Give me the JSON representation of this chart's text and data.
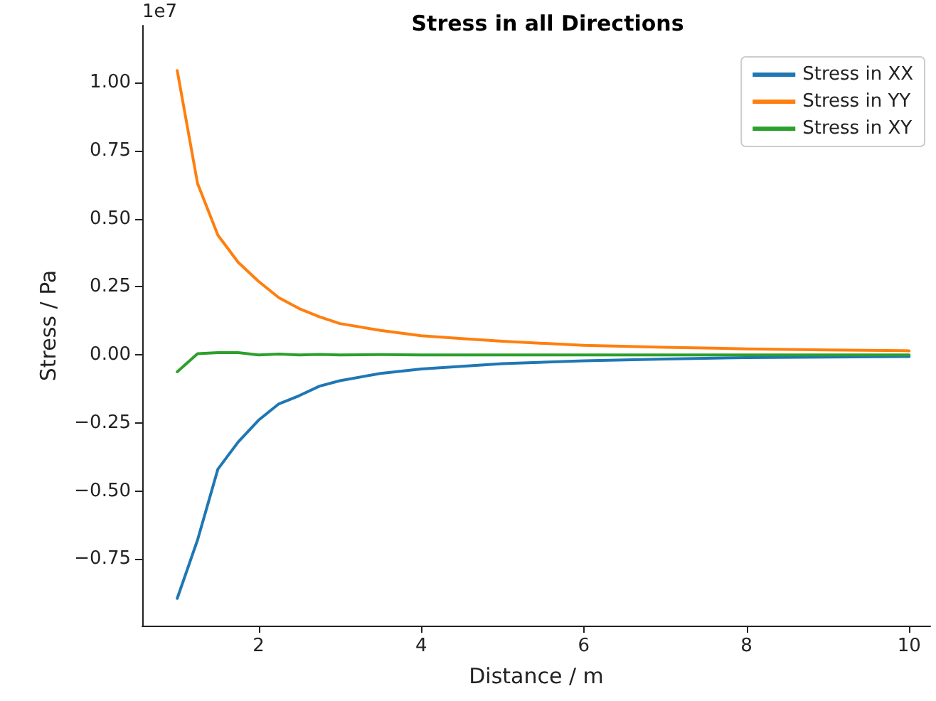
{
  "chart_data": {
    "type": "line",
    "title": "Stress in all Directions",
    "xlabel": "Distance / m",
    "ylabel": "Stress / Pa",
    "annotations": [
      "1e7"
    ],
    "x": [
      1,
      1.25,
      1.5,
      1.75,
      2,
      2.25,
      2.5,
      2.75,
      3,
      3.5,
      4,
      4.5,
      5,
      6,
      7,
      8,
      9,
      10
    ],
    "series": [
      {
        "name": "Stress in XX",
        "color": "#1f77b4",
        "values": [
          -0.895,
          -0.68,
          -0.42,
          -0.32,
          -0.24,
          -0.18,
          -0.15,
          -0.115,
          -0.095,
          -0.068,
          -0.052,
          -0.042,
          -0.032,
          -0.022,
          -0.015,
          -0.01,
          -0.008,
          -0.006
        ]
      },
      {
        "name": "Stress in YY",
        "color": "#ff7f0e",
        "values": [
          1.045,
          0.63,
          0.44,
          0.34,
          0.27,
          0.21,
          0.17,
          0.14,
          0.115,
          0.09,
          0.07,
          0.06,
          0.05,
          0.035,
          0.028,
          0.022,
          0.018,
          0.015
        ]
      },
      {
        "name": "Stress in XY",
        "color": "#2ca02c",
        "values": [
          -0.062,
          0.004,
          0.008,
          0.008,
          0.0,
          0.003,
          0.0,
          0.002,
          0.0,
          0.001,
          0.0,
          0.0,
          0.0,
          0.0,
          0.0,
          0.0,
          0.0,
          0.0
        ]
      }
    ],
    "xlim": [
      0.57,
      10.26
    ],
    "xticks": [
      2,
      4,
      6,
      8,
      10
    ],
    "ylim": [
      -0.995,
      1.21
    ],
    "yticks": [
      {
        "value": -0.75,
        "label": "−0.75"
      },
      {
        "value": -0.5,
        "label": "−0.50"
      },
      {
        "value": -0.25,
        "label": "−0.25"
      },
      {
        "value": 0,
        "label": "0.00"
      },
      {
        "value": 0.25,
        "label": "0.25"
      },
      {
        "value": 0.5,
        "label": "0.50"
      },
      {
        "value": 0.75,
        "label": "0.75"
      },
      {
        "value": 1,
        "label": "1.00"
      }
    ],
    "legend": "top right",
    "grid": false,
    "marker": "none",
    "line_style": "solid"
  }
}
